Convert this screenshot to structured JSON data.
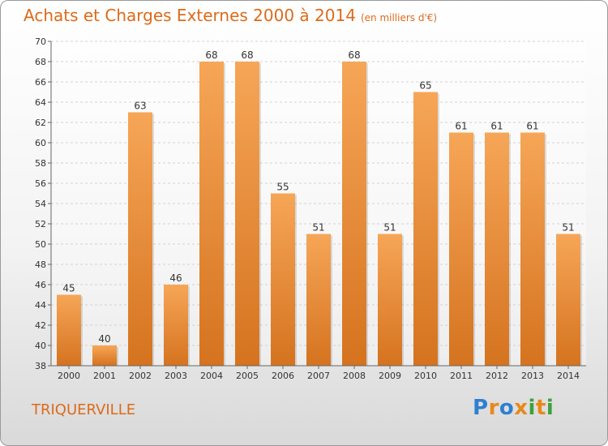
{
  "title": "Achats et Charges Externes 2000 à 2014",
  "subtitle": "(en milliers d'€)",
  "town": "TRIQUERVILLE",
  "logo": {
    "text": "Proxiti",
    "colors": [
      "#2f7fd0",
      "#e8891c",
      "#2f7fd0",
      "#e8891c",
      "#3da13b",
      "#e8891c",
      "#3da13b"
    ]
  },
  "colors": {
    "bar_light": "#f6a657",
    "bar_dark": "#d5731f",
    "title": "#dd6a1a",
    "axis_text": "#333333"
  },
  "chart_data": {
    "type": "bar",
    "categories": [
      "2000",
      "2001",
      "2002",
      "2003",
      "2004",
      "2005",
      "2006",
      "2007",
      "2008",
      "2009",
      "2010",
      "2011",
      "2012",
      "2013",
      "2014"
    ],
    "values": [
      45,
      40,
      63,
      46,
      68,
      68,
      55,
      51,
      68,
      51,
      65,
      61,
      61,
      61,
      51
    ],
    "ylim": [
      38,
      70
    ],
    "yticks": [
      38,
      40,
      42,
      44,
      46,
      48,
      50,
      52,
      54,
      56,
      58,
      60,
      62,
      64,
      66,
      68,
      70
    ],
    "grid": true,
    "xlabel": "",
    "ylabel": ""
  }
}
